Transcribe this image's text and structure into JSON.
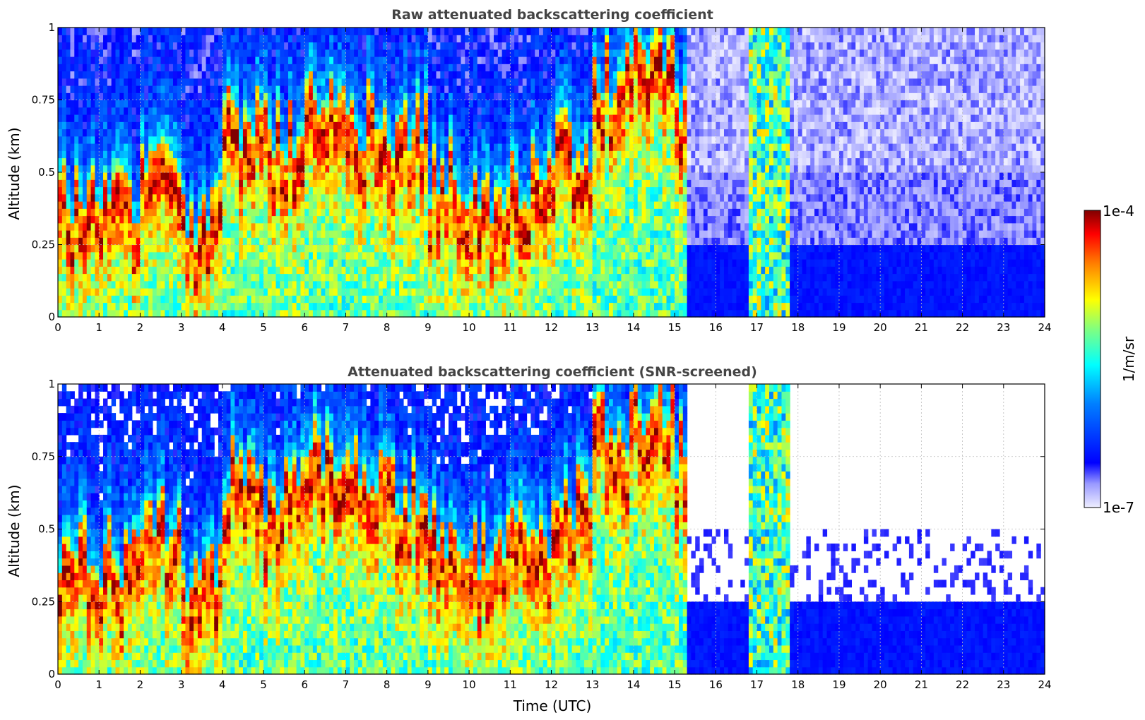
{
  "chart_data": [
    {
      "type": "heatmap",
      "title": "Raw attenuated backscattering coefficient",
      "xlabel": "",
      "ylabel": "Altitude (km)",
      "xlim": [
        0,
        24
      ],
      "ylim": [
        0,
        1
      ],
      "xticks": [
        "0",
        "1",
        "2",
        "3",
        "4",
        "5",
        "6",
        "7",
        "8",
        "9",
        "10",
        "11",
        "12",
        "13",
        "14",
        "15",
        "16",
        "17",
        "18",
        "19",
        "20",
        "21",
        "22",
        "23",
        "24"
      ],
      "yticks": [
        "0",
        "0.25",
        "0.5",
        "0.75",
        "1"
      ],
      "ytick_values": [
        0,
        0.25,
        0.5,
        0.75,
        1
      ],
      "grid": true,
      "screened": false,
      "layer_tops_km": [
        0.45,
        0.42,
        0.55,
        0.35,
        0.7,
        0.65,
        0.8,
        0.7,
        0.65,
        0.5,
        0.45,
        0.5,
        0.6,
        0.85,
        0.95,
        0.8,
        0.3,
        0.6,
        0.3,
        0.25,
        0.2,
        0.2,
        0.2,
        0.2
      ]
    },
    {
      "type": "heatmap",
      "title": "Attenuated backscattering coefficient (SNR-screened)",
      "xlabel": "Time (UTC)",
      "ylabel": "Altitude (km)",
      "xlim": [
        0,
        24
      ],
      "ylim": [
        0,
        1
      ],
      "xticks": [
        "0",
        "1",
        "2",
        "3",
        "4",
        "5",
        "6",
        "7",
        "8",
        "9",
        "10",
        "11",
        "12",
        "13",
        "14",
        "15",
        "16",
        "17",
        "18",
        "19",
        "20",
        "21",
        "22",
        "23",
        "24"
      ],
      "yticks": [
        "0",
        "0.25",
        "0.5",
        "0.75",
        "1"
      ],
      "ytick_values": [
        0,
        0.25,
        0.5,
        0.75,
        1
      ],
      "grid": true,
      "screened": true,
      "layer_tops_km": [
        0.45,
        0.42,
        0.55,
        0.35,
        0.7,
        0.65,
        0.8,
        0.7,
        0.65,
        0.5,
        0.45,
        0.5,
        0.6,
        0.85,
        0.95,
        0.8,
        0.3,
        0.6,
        0.3,
        0.25,
        0.2,
        0.2,
        0.2,
        0.2
      ]
    }
  ],
  "colorbar": {
    "label": "1/m/sr",
    "max_label": "1e-4",
    "min_label": "1e-7",
    "scale": "log",
    "range": [
      1e-07,
      0.0001
    ],
    "colormap": "jet"
  },
  "colors": {
    "title": "#444444",
    "grid": "#bbbbbb",
    "axis": "#000000",
    "low_signal": "#e6e6fa"
  }
}
